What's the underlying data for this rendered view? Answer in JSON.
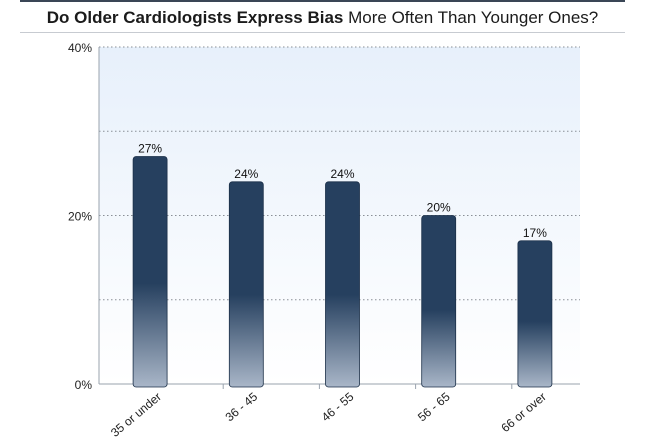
{
  "chart_data": {
    "type": "bar",
    "title_bold": "Do Older Cardiologists Express Bias",
    "title_rest": "More Often Than Younger Ones?",
    "categories": [
      "35 or under",
      "36 - 45",
      "46 - 55",
      "56 - 65",
      "66 or over"
    ],
    "values": [
      27,
      24,
      24,
      20,
      17
    ],
    "value_labels": [
      "27%",
      "24%",
      "24%",
      "20%",
      "17%"
    ],
    "ylim": [
      0,
      40
    ],
    "y_ticks": [
      0,
      20,
      40
    ],
    "y_tick_labels": [
      "0%",
      "20%",
      "40%"
    ],
    "minor_gridlines": [
      10,
      30
    ],
    "grid": true,
    "xlabel": "",
    "ylabel": "",
    "colors": {
      "bar_top": "#26405f",
      "bar_bottom": "#a9b6c8",
      "plot_bg_top": "#e7f0fb",
      "plot_bg_bottom": "#ffffff",
      "grid": "#8a8f96"
    }
  }
}
